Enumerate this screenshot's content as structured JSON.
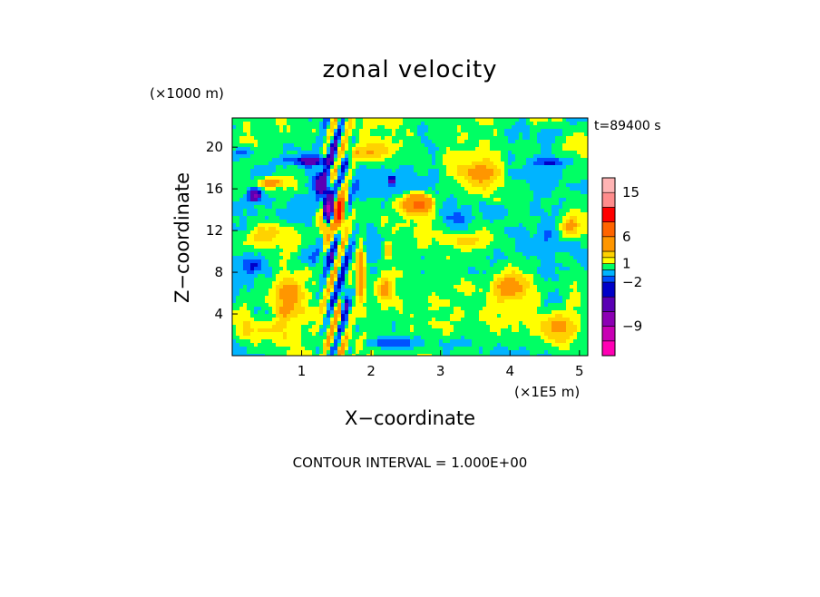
{
  "chart_data": {
    "type": "heatmap",
    "title": "zonal velocity",
    "xlabel": "X−coordinate",
    "ylabel": "Z−coordinate",
    "x_unit": "(×1E5 m)",
    "y_unit": "(×1000 m)",
    "time_label": "t=89400 s",
    "contour_interval": "CONTOUR INTERVAL = 1.000E+00",
    "xlim": [
      0,
      5.12
    ],
    "ylim": [
      0,
      22.8
    ],
    "x_ticks": [
      1,
      2,
      3,
      4,
      5
    ],
    "y_ticks": [
      4,
      8,
      12,
      16,
      20
    ],
    "colorbar": {
      "levels": [
        -15,
        -12,
        -9,
        -6,
        -3,
        -2,
        -1,
        0,
        1,
        2,
        3,
        6,
        9,
        12,
        15,
        18
      ],
      "colors": [
        "#ff00b4",
        "#c800b4",
        "#8c00b4",
        "#5a00b4",
        "#0000c8",
        "#0050ff",
        "#00b4ff",
        "#00ff64",
        "#ffff00",
        "#ffd200",
        "#ff9600",
        "#ff6400",
        "#ff0000",
        "#ff8c8c",
        "#ffb4b4"
      ],
      "tick_labels": [
        {
          "value": 15,
          "label": "15"
        },
        {
          "value": 6,
          "label": "6"
        },
        {
          "value": 1,
          "label": "1"
        },
        {
          "value": -2,
          "label": "−2"
        },
        {
          "value": -9,
          "label": "−9"
        }
      ]
    },
    "features": [
      {
        "x": 1.38,
        "z": 14.2,
        "amp": -9,
        "sx": 0.06,
        "sz": 1.3
      },
      {
        "x": 0.32,
        "z": 15.4,
        "amp": -7,
        "sx": 0.08,
        "sz": 0.55
      },
      {
        "x": 1.28,
        "z": 16.4,
        "amp": -5,
        "sx": 0.13,
        "sz": 1.1
      },
      {
        "x": 2.3,
        "z": 16.8,
        "amp": -5,
        "sx": 0.04,
        "sz": 0.4
      },
      {
        "x": 1.15,
        "z": 18.7,
        "amp": -4,
        "sx": 0.35,
        "sz": 0.45
      },
      {
        "x": 1.55,
        "z": 13.8,
        "amp": 9,
        "sx": 0.08,
        "sz": 1.8
      },
      {
        "x": 1.32,
        "z": 12.3,
        "amp": 5,
        "sx": 0.07,
        "sz": 1.0
      },
      {
        "x": 2.68,
        "z": 14.6,
        "amp": 6,
        "sx": 0.22,
        "sz": 0.9
      },
      {
        "x": 0.55,
        "z": 16.6,
        "amp": 4,
        "sx": 0.2,
        "sz": 0.5
      },
      {
        "x": 0.55,
        "z": 11.5,
        "amp": 2.5,
        "sx": 0.35,
        "sz": 1.3
      },
      {
        "x": 1.85,
        "z": 8.2,
        "amp": 5,
        "sx": 0.06,
        "sz": 2.5
      },
      {
        "x": 1.62,
        "z": 5.5,
        "amp": -4,
        "sx": 0.04,
        "sz": 1.6
      },
      {
        "x": 0.8,
        "z": 5.5,
        "amp": 3.5,
        "sx": 0.22,
        "sz": 2.0
      },
      {
        "x": 2.25,
        "z": 10.2,
        "amp": 3.5,
        "sx": 0.06,
        "sz": 0.9
      },
      {
        "x": 2.2,
        "z": 6.4,
        "amp": 3,
        "sx": 0.1,
        "sz": 1.2
      },
      {
        "x": 4.85,
        "z": 12.3,
        "amp": 3.5,
        "sx": 0.15,
        "sz": 1.0
      },
      {
        "x": 4.05,
        "z": 6.5,
        "amp": 3,
        "sx": 0.35,
        "sz": 1.5
      },
      {
        "x": 0.45,
        "z": 2.5,
        "amp": 2.5,
        "sx": 0.35,
        "sz": 1.2
      },
      {
        "x": 4.7,
        "z": 2.5,
        "amp": 2.5,
        "sx": 0.25,
        "sz": 1.5
      },
      {
        "x": 3.5,
        "z": 17.5,
        "amp": 2.5,
        "sx": 0.4,
        "sz": 1.2
      },
      {
        "x": 3.3,
        "z": 11.0,
        "amp": 2.3,
        "sx": 0.45,
        "sz": 0.9
      },
      {
        "x": 0.3,
        "z": 8.5,
        "amp": -2.5,
        "sx": 0.15,
        "sz": 0.7
      },
      {
        "x": 2.3,
        "z": 1.2,
        "amp": -2.5,
        "sx": 0.35,
        "sz": 0.55
      },
      {
        "x": 4.4,
        "z": 10.5,
        "amp": -1.5,
        "sx": 0.55,
        "sz": 2.0
      },
      {
        "x": 3.9,
        "z": 13.8,
        "amp": -1.5,
        "sx": 0.45,
        "sz": 1.2
      },
      {
        "x": 0.15,
        "z": 19.5,
        "amp": -2.5,
        "sx": 0.15,
        "sz": 0.5
      },
      {
        "x": 4.6,
        "z": 18.5,
        "amp": -2.5,
        "sx": 0.25,
        "sz": 0.4
      },
      {
        "x": 1.2,
        "z": 9.5,
        "amp": -1.5,
        "sx": 0.3,
        "sz": 1.0
      },
      {
        "x": 1.9,
        "z": 19.5,
        "amp": 2.5,
        "sx": 0.3,
        "sz": 1.0
      }
    ]
  }
}
